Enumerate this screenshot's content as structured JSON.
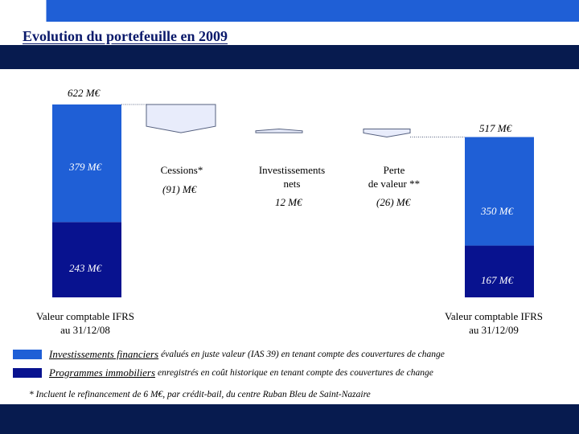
{
  "slide": {
    "title": "Evolution du portefeuille en 2009"
  },
  "colors": {
    "financial": "#1f5fd6",
    "real_estate": "#08128f",
    "bands": "#071b4f",
    "bridge": "#e8ecfb"
  },
  "chart_data": {
    "type": "waterfall",
    "title": "Evolution du portefeuille en 2009",
    "unit": "M€",
    "totals": [
      {
        "label": "Valeur comptable IFRS au 31/12/08",
        "label_lines": [
          "Valeur comptable IFRS",
          "au 31/12/08"
        ],
        "total": 622,
        "total_label": "622 M€",
        "segments": [
          {
            "name": "Programmes immobiliers",
            "value": 243,
            "label": "243 M€"
          },
          {
            "name": "Investissements financiers",
            "value": 379,
            "label": "379 M€"
          }
        ]
      },
      {
        "label": "Valeur comptable IFRS au 31/12/09",
        "label_lines": [
          "Valeur comptable IFRS",
          "au 31/12/09"
        ],
        "total": 517,
        "total_label": "517 M€",
        "segments": [
          {
            "name": "Programmes immobiliers",
            "value": 167,
            "label": "167 M€"
          },
          {
            "name": "Investissements financiers",
            "value": 350,
            "label": "350 M€"
          }
        ]
      }
    ],
    "steps": [
      {
        "label_lines": [
          "Cessions*"
        ],
        "value": -91,
        "value_label": "(91) M€"
      },
      {
        "label_lines": [
          "Investissements",
          "nets"
        ],
        "value": 12,
        "value_label": "12 M€"
      },
      {
        "label_lines": [
          "Perte",
          "de valeur **"
        ],
        "value": -26,
        "value_label": "(26) M€"
      }
    ]
  },
  "legend": [
    {
      "name": "Investissements financiers",
      "desc": "évalués en juste valeur (IAS 39) en tenant compte des couvertures de change"
    },
    {
      "name": "Programmes immobiliers",
      "desc": "enregistrés en coût historique en tenant compte des couvertures de change"
    }
  ],
  "footnotes": [
    "* Incluent le refinancement de 6 M€, par crédit-bail, du centre Ruban Bleu de Saint-Nazaire"
  ]
}
